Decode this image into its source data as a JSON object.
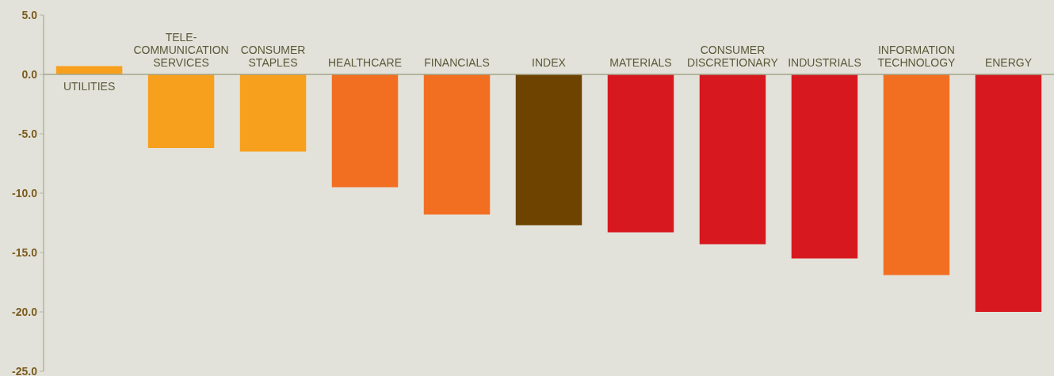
{
  "chart_data": {
    "type": "bar",
    "categories": [
      "UTILITIES",
      "TELE-\nCOMMUNICATION\nSERVICES",
      "CONSUMER\nSTAPLES",
      "HEALTHCARE",
      "FINANCIALS",
      "INDEX",
      "MATERIALS",
      "CONSUMER\nDISCRETIONARY",
      "INDUSTRIALS",
      "INFORMATION\nTECHNOLOGY",
      "ENERGY"
    ],
    "values": [
      0.7,
      -6.2,
      -6.5,
      -9.5,
      -11.8,
      -12.7,
      -13.3,
      -14.3,
      -15.5,
      -16.9,
      -20.0
    ],
    "colors": [
      "#f7a01e",
      "#f7a01e",
      "#f7a01e",
      "#f26f22",
      "#f26f22",
      "#6e4300",
      "#d7191f",
      "#d7191f",
      "#d7191f",
      "#f26f22",
      "#d7191f"
    ],
    "ylim": [
      -25,
      5
    ],
    "yticks": [
      {
        "value": 5,
        "label": "5.0"
      },
      {
        "value": 0,
        "label": "0.0"
      },
      {
        "value": -5,
        "label": "-5.0"
      },
      {
        "value": -10,
        "label": "-10.0"
      },
      {
        "value": -15,
        "label": "-15.0"
      },
      {
        "value": -20,
        "label": "-20.0"
      },
      {
        "value": -25,
        "label": "-25.0"
      }
    ],
    "grid": false
  }
}
